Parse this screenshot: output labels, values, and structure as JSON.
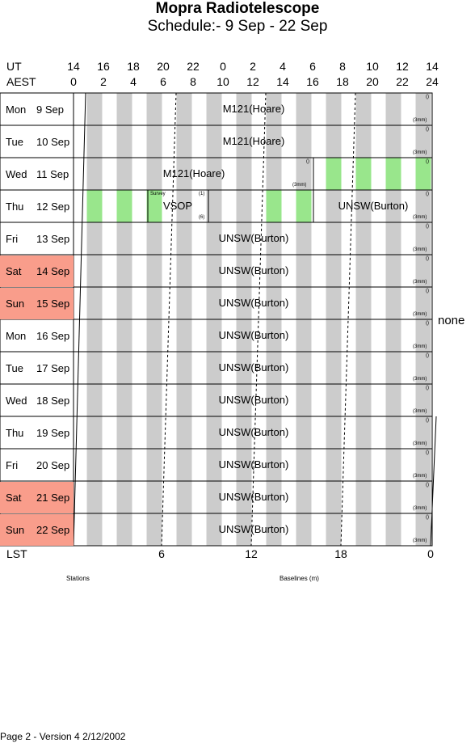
{
  "header": {
    "title": "Mopra Radiotelescope",
    "subtitle": "Schedule:- 9  Sep - 22 Sep"
  },
  "axis": {
    "ut_label": "UT",
    "aest_label": "AEST",
    "ut_ticks": [
      "14",
      "16",
      "18",
      "20",
      "22",
      "0",
      "2",
      "4",
      "6",
      "8",
      "10",
      "12",
      "14"
    ],
    "aest_ticks": [
      "0",
      "2",
      "4",
      "6",
      "8",
      "10",
      "12",
      "14",
      "16",
      "18",
      "20",
      "22",
      "24"
    ],
    "lst_label": "LST",
    "lst_ticks": [
      "6",
      "12",
      "18",
      "0"
    ]
  },
  "days": [
    {
      "dow": "Mon",
      "date": "9  Sep",
      "weekend": false
    },
    {
      "dow": "Tue",
      "date": "10 Sep",
      "weekend": false
    },
    {
      "dow": "Wed",
      "date": "11 Sep",
      "weekend": false
    },
    {
      "dow": "Thu",
      "date": "12 Sep",
      "weekend": false
    },
    {
      "dow": "Fri",
      "date": "13 Sep",
      "weekend": false
    },
    {
      "dow": "Sat",
      "date": "14 Sep",
      "weekend": true
    },
    {
      "dow": "Sun",
      "date": "15 Sep",
      "weekend": true
    },
    {
      "dow": "Mon",
      "date": "16 Sep",
      "weekend": false
    },
    {
      "dow": "Tue",
      "date": "17 Sep",
      "weekend": false
    },
    {
      "dow": "Wed",
      "date": "18 Sep",
      "weekend": false
    },
    {
      "dow": "Thu",
      "date": "19 Sep",
      "weekend": false
    },
    {
      "dow": "Fri",
      "date": "20 Sep",
      "weekend": false
    },
    {
      "dow": "Sat",
      "date": "21 Sep",
      "weekend": true
    },
    {
      "dow": "Sun",
      "date": "22 Sep",
      "weekend": true
    }
  ],
  "programs": {
    "row0": "M121(Hoare)",
    "row1": "M121(Hoare)",
    "row2": "M121(Hoare)",
    "row3_vsop": "VSOP",
    "row3_survey": "Survey",
    "row3_unsw": "UNSW(Burton)",
    "unsw": "UNSW(Burton)"
  },
  "tags": {
    "paren": "()",
    "three_mm": "(3mm)",
    "six": "(6)",
    "one": "(1)"
  },
  "side_label": "none",
  "legend": {
    "stations": "Stations",
    "baselines": "Baselines (m)"
  },
  "footer": "Page 2 - Version 4  2/12/2002",
  "colors": {
    "weekend": "#f99d8b",
    "stripe": "#cccccc",
    "green": "#99e68c"
  }
}
